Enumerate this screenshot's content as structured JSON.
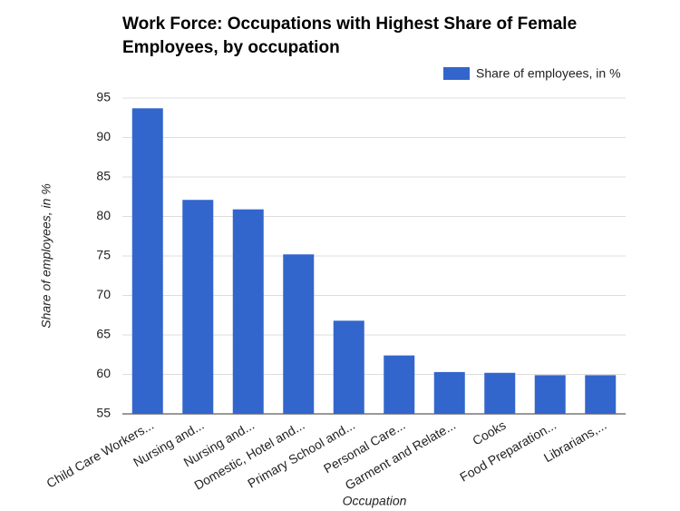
{
  "chart_data": {
    "type": "bar",
    "title": "Work Force: Occupations with Highest Share of Female Employees, by occupation",
    "x_label": "Occupation",
    "y_label": "Share of employees, in %",
    "categories": [
      "Child Care Workers...",
      "Nursing and...",
      "Nursing and...",
      "Domestic, Hotel and...",
      "Primary School and...",
      "Personal Care...",
      "Garment and Relate...",
      "Cooks",
      "Food Preparation...",
      "Librarians,..."
    ],
    "series": [
      {
        "name": "Share of employees, in %",
        "color": "#3366cc",
        "values": [
          93.7,
          82.1,
          80.9,
          75.2,
          66.8,
          62.4,
          60.3,
          60.2,
          59.9,
          59.9
        ]
      }
    ],
    "ylim": [
      55,
      95
    ],
    "yticks": [
      55,
      60,
      65,
      70,
      75,
      80,
      85,
      90,
      95
    ],
    "grid": true,
    "legend": "top-right"
  }
}
